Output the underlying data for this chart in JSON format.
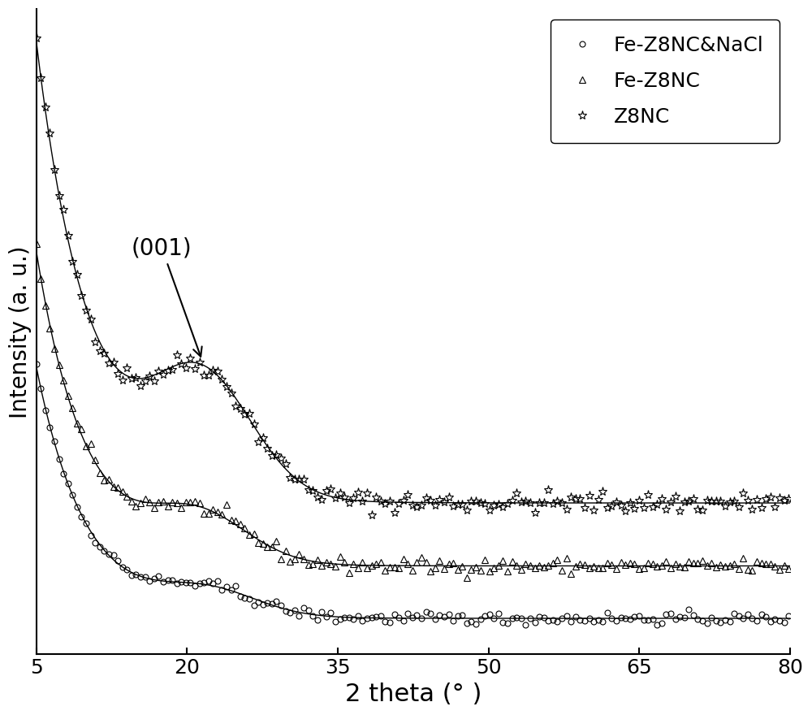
{
  "xlabel": "2 theta (° )",
  "ylabel": "Intensity (a. u.)",
  "xlim": [
    5,
    80
  ],
  "x_ticks": [
    5,
    20,
    35,
    50,
    65,
    80
  ],
  "annotation_text": "(001)",
  "legend": [
    "Fe-Z8NC&NaCl",
    "Fe-Z8NC",
    "Z8NC"
  ],
  "marker_size_circle": 5,
  "marker_size_triangle": 6,
  "marker_size_star": 8,
  "background_color": "#ffffff",
  "xlabel_fontsize": 22,
  "ylabel_fontsize": 20,
  "tick_fontsize": 18,
  "legend_fontsize": 18,
  "annotation_fontsize": 20
}
